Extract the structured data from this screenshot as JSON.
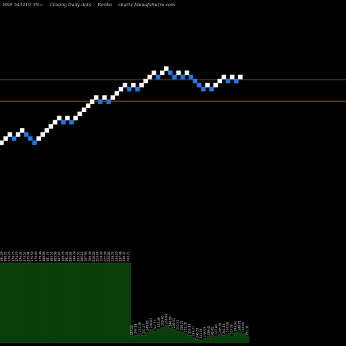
{
  "header": {
    "symbol": "BSE 543219 3%~",
    "description": "Closing Daily data",
    "chart_kind": "Renko",
    "site": "charts MunafaSutra.com"
  },
  "colors": {
    "background": "#000000",
    "up_brick": "#ffffff",
    "down_brick": "#1e78e6",
    "support_line": "#b8660b",
    "volume_fill": "#0a3d0a",
    "volume_edge": "#1f6b1f"
  },
  "chart_data": {
    "type": "renko",
    "brick_step_level": 1,
    "bricks": [
      {
        "dir": "up",
        "level": 0
      },
      {
        "dir": "up",
        "level": 1
      },
      {
        "dir": "up",
        "level": 2
      },
      {
        "dir": "down",
        "level": 1
      },
      {
        "dir": "up",
        "level": 2
      },
      {
        "dir": "up",
        "level": 3
      },
      {
        "dir": "down",
        "level": 2
      },
      {
        "dir": "down",
        "level": 1
      },
      {
        "dir": "down",
        "level": 0
      },
      {
        "dir": "up",
        "level": 1
      },
      {
        "dir": "up",
        "level": 2
      },
      {
        "dir": "up",
        "level": 3
      },
      {
        "dir": "up",
        "level": 4
      },
      {
        "dir": "up",
        "level": 5
      },
      {
        "dir": "up",
        "level": 6
      },
      {
        "dir": "down",
        "level": 5
      },
      {
        "dir": "up",
        "level": 6
      },
      {
        "dir": "down",
        "level": 5
      },
      {
        "dir": "up",
        "level": 6
      },
      {
        "dir": "up",
        "level": 7
      },
      {
        "dir": "up",
        "level": 8
      },
      {
        "dir": "up",
        "level": 9
      },
      {
        "dir": "up",
        "level": 10
      },
      {
        "dir": "up",
        "level": 11
      },
      {
        "dir": "down",
        "level": 10
      },
      {
        "dir": "up",
        "level": 11
      },
      {
        "dir": "down",
        "level": 10
      },
      {
        "dir": "up",
        "level": 11
      },
      {
        "dir": "up",
        "level": 12
      },
      {
        "dir": "up",
        "level": 13
      },
      {
        "dir": "up",
        "level": 14
      },
      {
        "dir": "down",
        "level": 13
      },
      {
        "dir": "up",
        "level": 14
      },
      {
        "dir": "down",
        "level": 13
      },
      {
        "dir": "up",
        "level": 14
      },
      {
        "dir": "up",
        "level": 15
      },
      {
        "dir": "up",
        "level": 16
      },
      {
        "dir": "up",
        "level": 17
      },
      {
        "dir": "down",
        "level": 16
      },
      {
        "dir": "up",
        "level": 17
      },
      {
        "dir": "up",
        "level": 18
      },
      {
        "dir": "down",
        "level": 17
      },
      {
        "dir": "down",
        "level": 16
      },
      {
        "dir": "up",
        "level": 17
      },
      {
        "dir": "down",
        "level": 16
      },
      {
        "dir": "up",
        "level": 17
      },
      {
        "dir": "down",
        "level": 16
      },
      {
        "dir": "down",
        "level": 15
      },
      {
        "dir": "down",
        "level": 14
      },
      {
        "dir": "down",
        "level": 13
      },
      {
        "dir": "up",
        "level": 14
      },
      {
        "dir": "down",
        "level": 13
      },
      {
        "dir": "up",
        "level": 14
      },
      {
        "dir": "up",
        "level": 15
      },
      {
        "dir": "up",
        "level": 16
      },
      {
        "dir": "down",
        "level": 15
      },
      {
        "dir": "up",
        "level": 16
      },
      {
        "dir": "down",
        "level": 15
      },
      {
        "dir": "up",
        "level": 16
      }
    ],
    "support_lines_level": [
      15.3,
      10.1
    ],
    "volume": [
      1.0,
      1.0,
      1.0,
      1.0,
      1.0,
      1.0,
      1.0,
      1.0,
      1.0,
      1.0,
      1.0,
      1.0,
      1.0,
      1.0,
      1.0,
      1.0,
      1.0,
      1.0,
      1.0,
      1.0,
      1.0,
      1.0,
      1.0,
      1.0,
      1.0,
      1.0,
      1.0,
      1.0,
      1.0,
      1.0,
      1.0,
      1.0,
      1.0,
      1.0,
      0.08,
      0.1,
      0.12,
      0.1,
      0.14,
      0.17,
      0.15,
      0.18,
      0.2,
      0.22,
      0.19,
      0.17,
      0.15,
      0.14,
      0.12,
      0.1,
      0.07,
      0.05,
      0.04,
      0.06,
      0.08,
      0.06,
      0.09,
      0.11,
      0.1,
      0.12,
      0.09,
      0.13,
      0.14,
      0.12,
      0.08
    ],
    "tick_labels": [
      "191.29",
      "190.75",
      "179.25",
      "178.75",
      "174.75",
      "176.45",
      "174.52",
      "175.44",
      "176.50",
      "178.89",
      "179.48",
      "180.36",
      "181.74",
      "183.52",
      "185.00",
      "187.47",
      "189.26",
      "191.34",
      "195.85",
      "199.29",
      "203.52",
      "205.15",
      "207.68",
      "209.39",
      "210.53",
      "214.44",
      "219.00",
      "222.30",
      "225.85",
      "229.75",
      "233.20",
      "237.48",
      "240.32",
      "243.21",
      "237.16",
      "244.08",
      "242.48",
      "241.27",
      "243.62",
      "249.87",
      "247.33",
      "251.49",
      "259.40",
      "253.93",
      "244.60",
      "249.51",
      "252.31",
      "256.71",
      "253.10",
      "255.84",
      "249.27",
      "245.53",
      "243.49",
      "238.93",
      "239.41",
      "246.45",
      "247.80",
      "246.29",
      "241.35",
      "244.59",
      "247.38",
      "243.52",
      "249.71",
      "244.69",
      "251.31"
    ]
  }
}
